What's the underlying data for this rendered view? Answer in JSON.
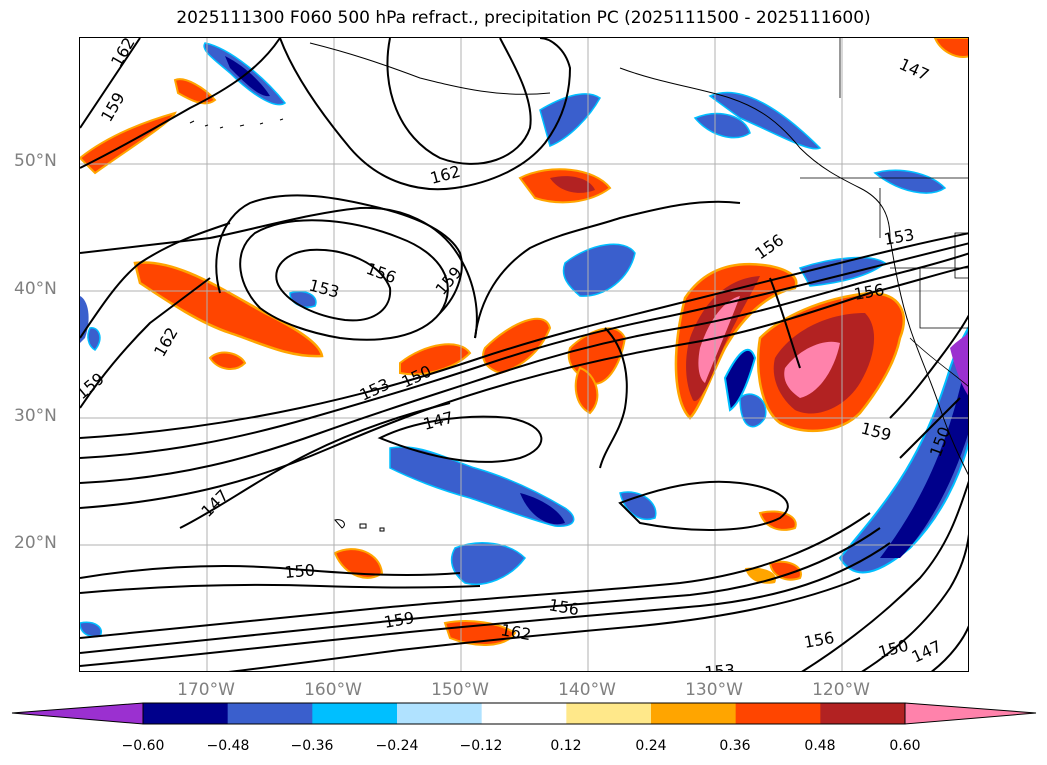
{
  "title": "2025111300 F060 500 hPa refract., precipitation PC (2025111500 - 2025111600)",
  "lat_labels": [
    "50°N",
    "40°N",
    "30°N",
    "20°N"
  ],
  "lon_labels": [
    "170°W",
    "160°W",
    "150°W",
    "140°W",
    "130°W",
    "120°W"
  ],
  "colorbar": {
    "ticks": [
      "−0.60",
      "−0.48",
      "−0.36",
      "−0.24",
      "−0.12",
      "0.12",
      "0.24",
      "0.36",
      "0.48",
      "0.60"
    ],
    "colors": [
      "#9b30d0",
      "#00008b",
      "#3a5fcd",
      "#00bfff",
      "#b0e2ff",
      "#ffffff",
      "#ffe88a",
      "#ffa500",
      "#ff4500",
      "#b22222",
      "#ff82ab"
    ]
  },
  "contour_labels": [
    "162",
    "159",
    "162",
    "153",
    "156",
    "159",
    "162",
    "159",
    "150",
    "153",
    "147",
    "147",
    "150",
    "159",
    "156",
    "162",
    "156",
    "150",
    "147",
    "153",
    "156",
    "153",
    "156",
    "159",
    "150",
    "147"
  ]
}
